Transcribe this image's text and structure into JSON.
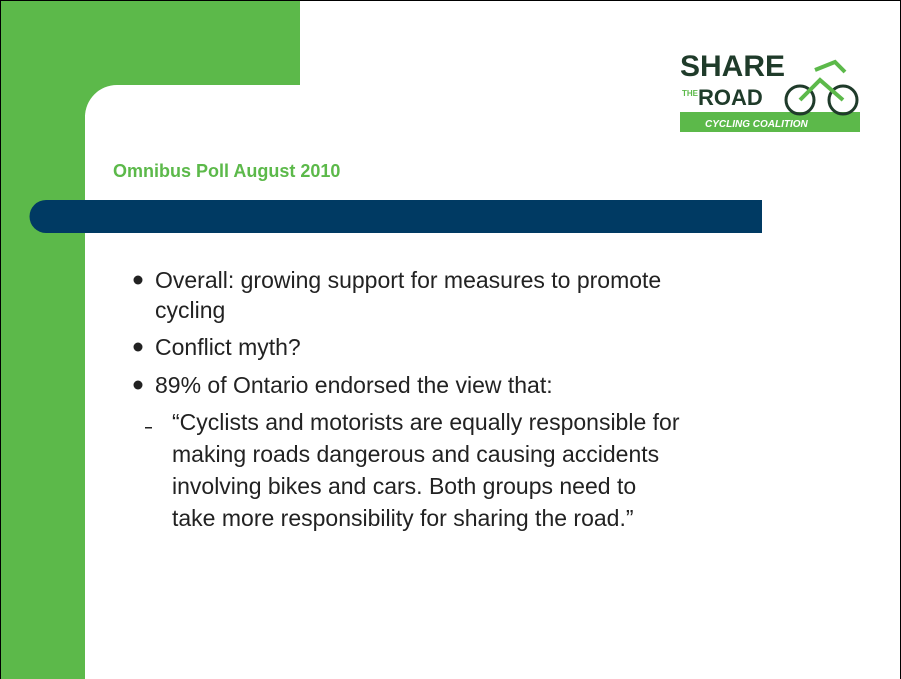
{
  "logo": {
    "line1": "SHARE",
    "line2a": "THE",
    "line2b": "ROAD",
    "line3": "CYCLING COALITION"
  },
  "title": "Omnibus Poll August 2010",
  "bullets": [
    "Overall: growing support for measures to promote",
    "cycling",
    "Conflict myth?",
    "89% of Ontario endorsed the view that:"
  ],
  "quote": [
    "“Cyclists and motorists are equally responsible for",
    "making roads dangerous and causing accidents",
    "involving bikes and cars. Both groups need to",
    "take more responsibility for sharing the road.”"
  ]
}
